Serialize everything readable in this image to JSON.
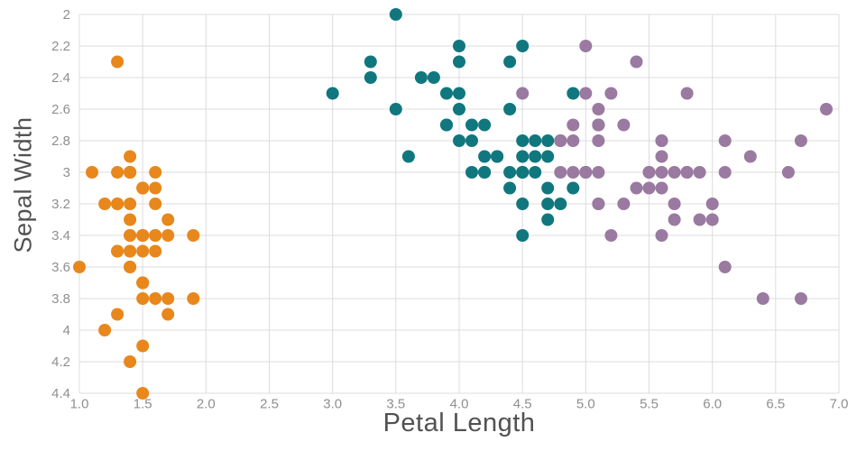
{
  "chart_data": {
    "type": "scatter",
    "title": "",
    "x_axis": {
      "label": "Petal Length",
      "range": [
        1.0,
        7.0
      ],
      "ticks": [
        1.0,
        1.5,
        2.0,
        2.5,
        3.0,
        3.5,
        4.0,
        4.5,
        5.0,
        5.5,
        6.0,
        6.5,
        7.0
      ],
      "tick_labels": [
        "1.0",
        "1.5",
        "2.0",
        "2.5",
        "3.0",
        "3.5",
        "4.0",
        "4.5",
        "5.0",
        "5.5",
        "6.0",
        "6.5",
        "7.0"
      ]
    },
    "y_axis": {
      "label": "Sepal Width",
      "range": [
        2.0,
        4.4
      ],
      "inverted": true,
      "ticks": [
        2.0,
        2.2,
        2.4,
        2.6,
        2.8,
        3.0,
        3.2,
        3.4,
        3.6,
        3.8,
        4.0,
        4.2,
        4.4
      ],
      "tick_labels": [
        "2",
        "2.2",
        "2.4",
        "2.6",
        "2.8",
        "3",
        "3.2",
        "3.4",
        "3.6",
        "3.8",
        "4",
        "4.2",
        "4.4"
      ]
    },
    "grid": true,
    "legend": "none",
    "style": {
      "background": "#ffffff",
      "grid_color": "#dcdcdc",
      "tick_color": "#8f8f8f",
      "axis_title_color": "#525252",
      "marker_radius": 7
    },
    "series": [
      {
        "name": "orange",
        "color": "#E8871C",
        "points": [
          [
            1.4,
            3.5
          ],
          [
            1.4,
            3.0
          ],
          [
            1.3,
            3.2
          ],
          [
            1.5,
            3.1
          ],
          [
            1.4,
            3.6
          ],
          [
            1.7,
            3.9
          ],
          [
            1.4,
            3.4
          ],
          [
            1.5,
            3.4
          ],
          [
            1.4,
            2.9
          ],
          [
            1.5,
            3.1
          ],
          [
            1.5,
            3.7
          ],
          [
            1.6,
            3.4
          ],
          [
            1.4,
            3.0
          ],
          [
            1.1,
            3.0
          ],
          [
            1.2,
            4.0
          ],
          [
            1.5,
            4.4
          ],
          [
            1.3,
            3.9
          ],
          [
            1.4,
            3.5
          ],
          [
            1.7,
            3.8
          ],
          [
            1.5,
            3.8
          ],
          [
            1.7,
            3.4
          ],
          [
            1.5,
            3.7
          ],
          [
            1.0,
            3.6
          ],
          [
            1.7,
            3.3
          ],
          [
            1.9,
            3.4
          ],
          [
            1.6,
            3.0
          ],
          [
            1.6,
            3.4
          ],
          [
            1.5,
            3.5
          ],
          [
            1.4,
            3.4
          ],
          [
            1.6,
            3.2
          ],
          [
            1.6,
            3.1
          ],
          [
            1.5,
            3.4
          ],
          [
            1.5,
            4.1
          ],
          [
            1.4,
            4.2
          ],
          [
            1.5,
            3.1
          ],
          [
            1.2,
            3.2
          ],
          [
            1.3,
            3.5
          ],
          [
            1.4,
            3.6
          ],
          [
            1.3,
            3.0
          ],
          [
            1.5,
            3.4
          ],
          [
            1.3,
            3.5
          ],
          [
            1.3,
            2.3
          ],
          [
            1.3,
            3.2
          ],
          [
            1.6,
            3.5
          ],
          [
            1.9,
            3.8
          ],
          [
            1.4,
            3.0
          ],
          [
            1.6,
            3.8
          ],
          [
            1.4,
            3.2
          ],
          [
            1.5,
            3.7
          ],
          [
            1.4,
            3.3
          ]
        ]
      },
      {
        "name": "teal",
        "color": "#11777E",
        "points": [
          [
            4.7,
            3.2
          ],
          [
            4.5,
            3.2
          ],
          [
            4.9,
            3.1
          ],
          [
            4.0,
            2.3
          ],
          [
            4.6,
            2.8
          ],
          [
            4.5,
            2.8
          ],
          [
            4.7,
            3.3
          ],
          [
            3.3,
            2.4
          ],
          [
            4.6,
            2.9
          ],
          [
            3.9,
            2.7
          ],
          [
            3.5,
            2.0
          ],
          [
            4.2,
            3.0
          ],
          [
            4.0,
            2.2
          ],
          [
            4.7,
            2.9
          ],
          [
            3.6,
            2.9
          ],
          [
            4.4,
            3.1
          ],
          [
            4.5,
            3.0
          ],
          [
            4.1,
            2.7
          ],
          [
            4.5,
            2.2
          ],
          [
            3.9,
            2.5
          ],
          [
            4.8,
            3.2
          ],
          [
            4.0,
            2.8
          ],
          [
            4.9,
            2.5
          ],
          [
            4.7,
            2.8
          ],
          [
            4.3,
            2.9
          ],
          [
            4.4,
            3.0
          ],
          [
            4.8,
            2.8
          ],
          [
            5.0,
            3.0
          ],
          [
            4.5,
            2.9
          ],
          [
            3.5,
            2.6
          ],
          [
            3.8,
            2.4
          ],
          [
            3.7,
            2.4
          ],
          [
            3.9,
            2.7
          ],
          [
            5.1,
            2.7
          ],
          [
            4.5,
            3.0
          ],
          [
            4.5,
            3.4
          ],
          [
            4.7,
            3.1
          ],
          [
            4.4,
            2.3
          ],
          [
            4.1,
            3.0
          ],
          [
            4.0,
            2.5
          ],
          [
            4.4,
            2.6
          ],
          [
            4.6,
            3.0
          ],
          [
            4.0,
            2.6
          ],
          [
            3.3,
            2.3
          ],
          [
            4.2,
            2.7
          ],
          [
            4.2,
            3.0
          ],
          [
            4.2,
            2.9
          ],
          [
            4.3,
            2.9
          ],
          [
            3.0,
            2.5
          ],
          [
            4.1,
            2.8
          ]
        ]
      },
      {
        "name": "purple",
        "color": "#9A7AA0",
        "points": [
          [
            6.0,
            3.3
          ],
          [
            5.1,
            2.7
          ],
          [
            5.9,
            3.0
          ],
          [
            5.6,
            2.9
          ],
          [
            5.8,
            3.0
          ],
          [
            6.6,
            3.0
          ],
          [
            4.5,
            2.5
          ],
          [
            6.3,
            2.9
          ],
          [
            5.8,
            2.5
          ],
          [
            6.1,
            3.6
          ],
          [
            5.1,
            3.2
          ],
          [
            5.3,
            2.7
          ],
          [
            5.5,
            3.0
          ],
          [
            5.0,
            2.5
          ],
          [
            5.1,
            2.8
          ],
          [
            5.3,
            3.2
          ],
          [
            5.5,
            3.0
          ],
          [
            6.7,
            3.8
          ],
          [
            6.9,
            2.6
          ],
          [
            5.0,
            2.2
          ],
          [
            5.7,
            3.2
          ],
          [
            4.9,
            2.8
          ],
          [
            6.7,
            2.8
          ],
          [
            4.9,
            2.7
          ],
          [
            5.7,
            3.3
          ],
          [
            6.0,
            3.2
          ],
          [
            4.8,
            2.8
          ],
          [
            4.9,
            3.0
          ],
          [
            5.6,
            2.8
          ],
          [
            5.8,
            3.0
          ],
          [
            6.1,
            2.8
          ],
          [
            6.4,
            3.8
          ],
          [
            5.6,
            2.8
          ],
          [
            5.1,
            2.6
          ],
          [
            5.6,
            3.0
          ],
          [
            6.1,
            3.0
          ],
          [
            5.6,
            3.4
          ],
          [
            5.5,
            3.1
          ],
          [
            4.8,
            3.0
          ],
          [
            5.4,
            3.1
          ],
          [
            5.6,
            3.1
          ],
          [
            5.1,
            2.7
          ],
          [
            5.1,
            3.2
          ],
          [
            5.9,
            3.3
          ],
          [
            5.7,
            3.0
          ],
          [
            5.2,
            2.5
          ],
          [
            5.0,
            3.0
          ],
          [
            5.2,
            3.4
          ],
          [
            5.4,
            2.3
          ],
          [
            5.1,
            3.0
          ]
        ]
      }
    ]
  }
}
